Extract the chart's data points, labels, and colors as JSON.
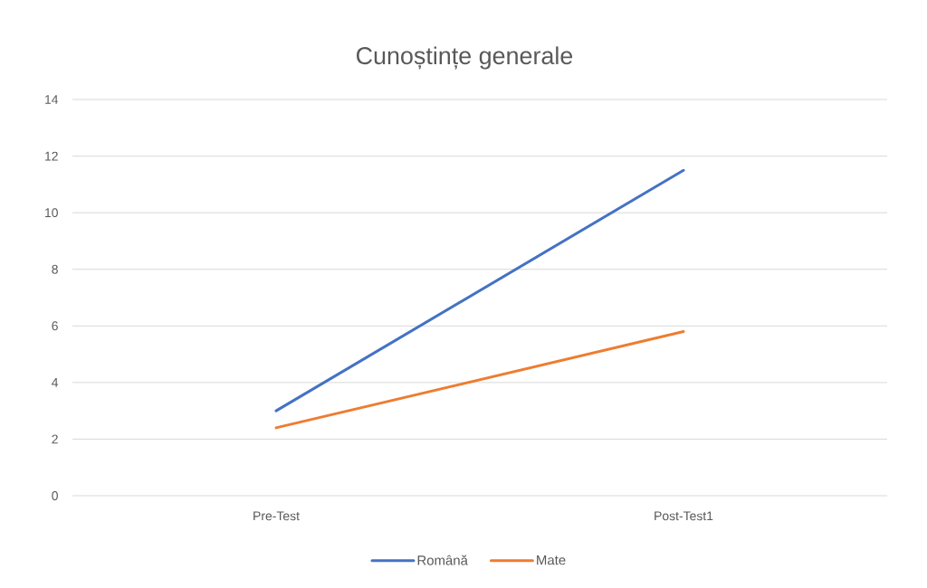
{
  "chart_data": {
    "type": "line",
    "title": "Cunoștințe generale",
    "categories": [
      "Pre-Test",
      "Post-Test1"
    ],
    "series": [
      {
        "name": "Română",
        "color": "#4472c4",
        "values": [
          3,
          11.5
        ]
      },
      {
        "name": "Mate",
        "color": "#ed7d31",
        "values": [
          2.4,
          5.8
        ]
      }
    ],
    "ylim": [
      0,
      14
    ],
    "yticks": [
      0,
      2,
      4,
      6,
      8,
      10,
      12,
      14
    ],
    "grid": "y",
    "legend": "bottom",
    "marker": "none",
    "line_style": "solid"
  }
}
